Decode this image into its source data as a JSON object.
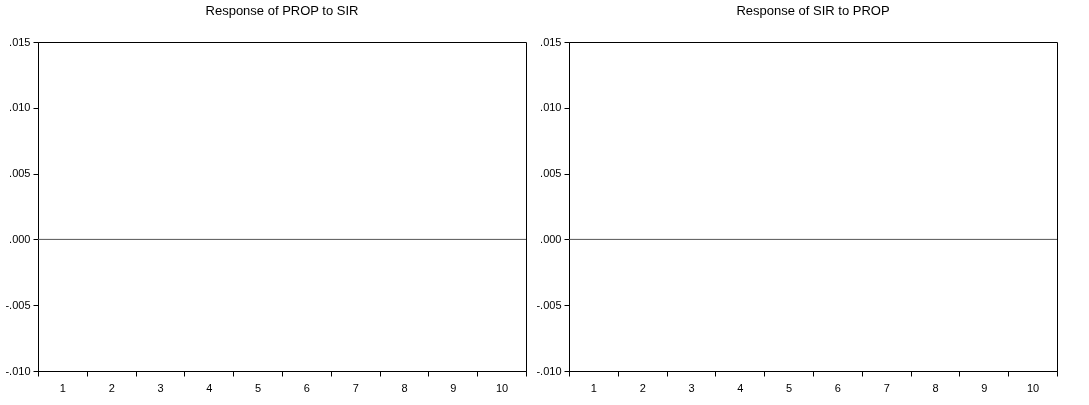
{
  "chart_data": [
    {
      "type": "line",
      "title": "Response of PROP to SIR",
      "categories": [
        "1",
        "2",
        "3",
        "4",
        "5",
        "6",
        "7",
        "8",
        "9",
        "10"
      ],
      "ylim": [
        -0.01,
        0.015
      ],
      "yticks": [
        {
          "value": -0.01,
          "label": "-.010"
        },
        {
          "value": -0.005,
          "label": "-.005"
        },
        {
          "value": 0,
          "label": ".000"
        },
        {
          "value": 0.005,
          "label": ".005"
        },
        {
          "value": 0.01,
          "label": ".010"
        },
        {
          "value": 0.015,
          "label": ".015"
        }
      ],
      "ref_lines": [
        {
          "axis": "y",
          "value": 0,
          "color": "#555555"
        }
      ],
      "grid": false
    },
    {
      "type": "line",
      "title": "Response of SIR to PROP",
      "categories": [
        "1",
        "2",
        "3",
        "4",
        "5",
        "6",
        "7",
        "8",
        "9",
        "10"
      ],
      "ylim": [
        -0.01,
        0.015
      ],
      "yticks": [
        {
          "value": -0.01,
          "label": "-.010"
        },
        {
          "value": -0.005,
          "label": "-.005"
        },
        {
          "value": 0,
          "label": ".000"
        },
        {
          "value": 0.005,
          "label": ".005"
        },
        {
          "value": 0.01,
          "label": ".010"
        },
        {
          "value": 0.015,
          "label": ".015"
        }
      ],
      "ref_lines": [
        {
          "axis": "y",
          "value": 0,
          "color": "#555555"
        }
      ],
      "grid": false
    }
  ]
}
